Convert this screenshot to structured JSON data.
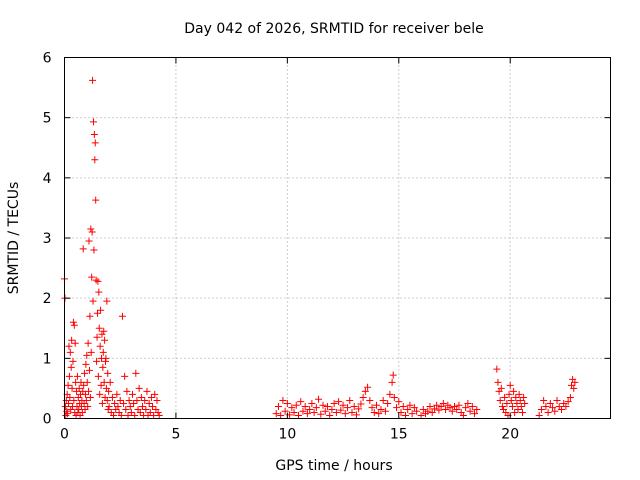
{
  "chart_data": {
    "type": "scatter",
    "title": "Day 042 of 2026, SRMTID for receiver bele",
    "xlabel": "GPS time / hours",
    "ylabel": "SRMTID / TECUs",
    "xlim": [
      0,
      24.5
    ],
    "ylim": [
      0,
      6
    ],
    "xticks": [
      0,
      5,
      10,
      15,
      20
    ],
    "yticks": [
      0,
      1,
      2,
      3,
      4,
      5,
      6
    ],
    "grid": true,
    "marker": "+",
    "color": "#ff0000",
    "series": [
      {
        "name": "SRMTID",
        "points": [
          [
            0.0,
            2.32
          ],
          [
            0.02,
            2.0
          ],
          [
            0.04,
            0.2
          ],
          [
            0.06,
            0.05
          ],
          [
            0.08,
            0.3
          ],
          [
            0.1,
            0.12
          ],
          [
            0.12,
            0.4
          ],
          [
            0.14,
            0.08
          ],
          [
            0.16,
            0.55
          ],
          [
            0.18,
            0.25
          ],
          [
            0.2,
            1.2
          ],
          [
            0.22,
            0.7
          ],
          [
            0.24,
            0.35
          ],
          [
            0.26,
            1.1
          ],
          [
            0.28,
            0.15
          ],
          [
            0.3,
            0.85
          ],
          [
            0.32,
            1.3
          ],
          [
            0.34,
            0.5
          ],
          [
            0.36,
            0.2
          ],
          [
            0.38,
            0.95
          ],
          [
            0.4,
            1.6
          ],
          [
            0.42,
            0.3
          ],
          [
            0.44,
            1.55
          ],
          [
            0.46,
            0.1
          ],
          [
            0.48,
            1.25
          ],
          [
            0.5,
            0.6
          ],
          [
            0.52,
            0.05
          ],
          [
            0.54,
            0.45
          ],
          [
            0.56,
            0.2
          ],
          [
            0.58,
            0.7
          ],
          [
            0.6,
            0.1
          ],
          [
            0.62,
            0.35
          ],
          [
            0.64,
            0.15
          ],
          [
            0.66,
            0.5
          ],
          [
            0.68,
            0.25
          ],
          [
            0.7,
            0.05
          ],
          [
            0.72,
            0.4
          ],
          [
            0.74,
            0.6
          ],
          [
            0.76,
            0.2
          ],
          [
            0.78,
            0.3
          ],
          [
            0.8,
            0.1
          ],
          [
            0.82,
            0.45
          ],
          [
            0.84,
            2.82
          ],
          [
            0.86,
            0.55
          ],
          [
            0.88,
            0.25
          ],
          [
            0.9,
            0.75
          ],
          [
            0.92,
            0.15
          ],
          [
            0.94,
            0.4
          ],
          [
            0.96,
            0.9
          ],
          [
            0.98,
            0.3
          ],
          [
            1.0,
            1.05
          ],
          [
            1.02,
            0.6
          ],
          [
            1.04,
            0.2
          ],
          [
            1.06,
            1.25
          ],
          [
            1.08,
            0.45
          ],
          [
            1.1,
            2.95
          ],
          [
            1.12,
            0.8
          ],
          [
            1.14,
            1.7
          ],
          [
            1.16,
            0.35
          ],
          [
            1.18,
            3.15
          ],
          [
            1.2,
            1.1
          ],
          [
            1.22,
            2.35
          ],
          [
            1.24,
            3.1
          ],
          [
            1.26,
            5.62
          ],
          [
            1.28,
            1.95
          ],
          [
            1.3,
            4.93
          ],
          [
            1.32,
            2.8
          ],
          [
            1.34,
            4.72
          ],
          [
            1.36,
            4.3
          ],
          [
            1.38,
            4.58
          ],
          [
            1.4,
            3.63
          ],
          [
            1.42,
            2.3
          ],
          [
            1.44,
            0.95
          ],
          [
            1.46,
            1.35
          ],
          [
            1.48,
            1.75
          ],
          [
            1.5,
            2.28
          ],
          [
            1.52,
            0.7
          ],
          [
            1.54,
            2.1
          ],
          [
            1.56,
            1.5
          ],
          [
            1.58,
            0.4
          ],
          [
            1.6,
            1.2
          ],
          [
            1.62,
            1.8
          ],
          [
            1.64,
            0.55
          ],
          [
            1.66,
            1.0
          ],
          [
            1.68,
            1.4
          ],
          [
            1.7,
            0.25
          ],
          [
            1.72,
            0.85
          ],
          [
            1.74,
            1.1
          ],
          [
            1.76,
            1.45
          ],
          [
            1.78,
            0.6
          ],
          [
            1.8,
            1.3
          ],
          [
            1.82,
            0.35
          ],
          [
            1.84,
            0.95
          ],
          [
            1.86,
            1.0
          ],
          [
            1.88,
            0.5
          ],
          [
            1.9,
            1.95
          ],
          [
            1.92,
            0.3
          ],
          [
            1.94,
            0.75
          ],
          [
            1.96,
            0.15
          ],
          [
            1.98,
            0.45
          ],
          [
            2.0,
            0.2
          ],
          [
            2.05,
            0.6
          ],
          [
            2.1,
            0.1
          ],
          [
            2.15,
            0.35
          ],
          [
            2.2,
            0.05
          ],
          [
            2.25,
            0.25
          ],
          [
            2.3,
            0.15
          ],
          [
            2.35,
            0.4
          ],
          [
            2.4,
            0.2
          ],
          [
            2.45,
            0.1
          ],
          [
            2.5,
            0.3
          ],
          [
            2.55,
            0.05
          ],
          [
            2.6,
            1.7
          ],
          [
            2.65,
            0.25
          ],
          [
            2.7,
            0.7
          ],
          [
            2.75,
            0.15
          ],
          [
            2.8,
            0.45
          ],
          [
            2.85,
            0.05
          ],
          [
            2.9,
            0.3
          ],
          [
            2.95,
            0.2
          ],
          [
            3.0,
            0.1
          ],
          [
            3.05,
            0.4
          ],
          [
            3.1,
            0.25
          ],
          [
            3.15,
            0.05
          ],
          [
            3.2,
            0.75
          ],
          [
            3.25,
            0.3
          ],
          [
            3.3,
            0.15
          ],
          [
            3.35,
            0.5
          ],
          [
            3.4,
            0.1
          ],
          [
            3.45,
            0.35
          ],
          [
            3.5,
            0.2
          ],
          [
            3.55,
            0.05
          ],
          [
            3.6,
            0.3
          ],
          [
            3.65,
            0.15
          ],
          [
            3.7,
            0.45
          ],
          [
            3.75,
            0.05
          ],
          [
            3.8,
            0.25
          ],
          [
            3.85,
            0.1
          ],
          [
            3.9,
            0.35
          ],
          [
            3.95,
            0.2
          ],
          [
            4.0,
            0.05
          ],
          [
            4.05,
            0.4
          ],
          [
            4.1,
            0.15
          ],
          [
            4.15,
            0.3
          ],
          [
            4.2,
            0.1
          ],
          [
            4.25,
            0.05
          ],
          [
            9.5,
            0.08
          ],
          [
            9.6,
            0.2
          ],
          [
            9.7,
            0.05
          ],
          [
            9.8,
            0.3
          ],
          [
            9.9,
            0.12
          ],
          [
            10.0,
            0.25
          ],
          [
            10.1,
            0.06
          ],
          [
            10.2,
            0.18
          ],
          [
            10.3,
            0.1
          ],
          [
            10.4,
            0.22
          ],
          [
            10.5,
            0.05
          ],
          [
            10.6,
            0.28
          ],
          [
            10.7,
            0.12
          ],
          [
            10.8,
            0.2
          ],
          [
            10.9,
            0.08
          ],
          [
            11.0,
            0.15
          ],
          [
            11.1,
            0.25
          ],
          [
            11.2,
            0.1
          ],
          [
            11.3,
            0.18
          ],
          [
            11.4,
            0.32
          ],
          [
            11.5,
            0.07
          ],
          [
            11.6,
            0.22
          ],
          [
            11.7,
            0.12
          ],
          [
            11.8,
            0.2
          ],
          [
            11.9,
            0.05
          ],
          [
            12.0,
            0.15
          ],
          [
            12.1,
            0.25
          ],
          [
            12.2,
            0.1
          ],
          [
            12.3,
            0.28
          ],
          [
            12.4,
            0.14
          ],
          [
            12.5,
            0.22
          ],
          [
            12.6,
            0.08
          ],
          [
            12.7,
            0.18
          ],
          [
            12.8,
            0.3
          ],
          [
            12.9,
            0.1
          ],
          [
            13.0,
            0.2
          ],
          [
            13.1,
            0.06
          ],
          [
            13.2,
            0.16
          ],
          [
            13.3,
            0.24
          ],
          [
            13.4,
            0.35
          ],
          [
            13.5,
            0.45
          ],
          [
            13.6,
            0.52
          ],
          [
            13.7,
            0.3
          ],
          [
            13.8,
            0.18
          ],
          [
            13.9,
            0.1
          ],
          [
            14.0,
            0.22
          ],
          [
            14.1,
            0.08
          ],
          [
            14.2,
            0.15
          ],
          [
            14.3,
            0.3
          ],
          [
            14.4,
            0.12
          ],
          [
            14.5,
            0.25
          ],
          [
            14.6,
            0.4
          ],
          [
            14.7,
            0.6
          ],
          [
            14.75,
            0.72
          ],
          [
            14.8,
            0.35
          ],
          [
            14.9,
            0.18
          ],
          [
            15.0,
            0.28
          ],
          [
            15.1,
            0.1
          ],
          [
            15.2,
            0.2
          ],
          [
            15.3,
            0.05
          ],
          [
            15.4,
            0.15
          ],
          [
            15.5,
            0.22
          ],
          [
            15.6,
            0.08
          ],
          [
            15.7,
            0.18
          ],
          [
            15.8,
            0.12
          ],
          [
            16.0,
            0.05
          ],
          [
            16.1,
            0.15
          ],
          [
            16.2,
            0.08
          ],
          [
            16.3,
            0.12
          ],
          [
            16.4,
            0.2
          ],
          [
            16.5,
            0.1
          ],
          [
            16.6,
            0.16
          ],
          [
            16.7,
            0.22
          ],
          [
            16.8,
            0.14
          ],
          [
            16.9,
            0.2
          ],
          [
            17.0,
            0.25
          ],
          [
            17.1,
            0.15
          ],
          [
            17.2,
            0.22
          ],
          [
            17.3,
            0.18
          ],
          [
            17.4,
            0.12
          ],
          [
            17.5,
            0.2
          ],
          [
            17.6,
            0.15
          ],
          [
            17.7,
            0.22
          ],
          [
            17.8,
            0.1
          ],
          [
            17.9,
            0.05
          ],
          [
            18.0,
            0.18
          ],
          [
            18.1,
            0.25
          ],
          [
            18.2,
            0.12
          ],
          [
            18.3,
            0.2
          ],
          [
            18.4,
            0.08
          ],
          [
            18.5,
            0.15
          ],
          [
            19.4,
            0.82
          ],
          [
            19.45,
            0.6
          ],
          [
            19.5,
            0.45
          ],
          [
            19.55,
            0.3
          ],
          [
            19.6,
            0.5
          ],
          [
            19.65,
            0.2
          ],
          [
            19.7,
            0.15
          ],
          [
            19.75,
            0.35
          ],
          [
            19.8,
            0.1
          ],
          [
            19.85,
            0.25
          ],
          [
            19.9,
            0.05
          ],
          [
            19.95,
            0.4
          ],
          [
            20.0,
            0.55
          ],
          [
            20.05,
            0.3
          ],
          [
            20.1,
            0.2
          ],
          [
            20.15,
            0.45
          ],
          [
            20.2,
            0.1
          ],
          [
            20.25,
            0.35
          ],
          [
            20.3,
            0.25
          ],
          [
            20.35,
            0.15
          ],
          [
            20.4,
            0.4
          ],
          [
            20.45,
            0.3
          ],
          [
            20.5,
            0.2
          ],
          [
            20.55,
            0.1
          ],
          [
            20.6,
            0.35
          ],
          [
            20.65,
            0.25
          ],
          [
            21.3,
            0.05
          ],
          [
            21.4,
            0.15
          ],
          [
            21.5,
            0.3
          ],
          [
            21.6,
            0.2
          ],
          [
            21.7,
            0.1
          ],
          [
            21.8,
            0.25
          ],
          [
            21.9,
            0.18
          ],
          [
            22.0,
            0.12
          ],
          [
            22.1,
            0.3
          ],
          [
            22.2,
            0.2
          ],
          [
            22.3,
            0.15
          ],
          [
            22.4,
            0.25
          ],
          [
            22.5,
            0.2
          ],
          [
            22.6,
            0.28
          ],
          [
            22.7,
            0.35
          ],
          [
            22.75,
            0.55
          ],
          [
            22.8,
            0.65
          ],
          [
            22.85,
            0.5
          ],
          [
            22.9,
            0.6
          ]
        ]
      }
    ]
  }
}
